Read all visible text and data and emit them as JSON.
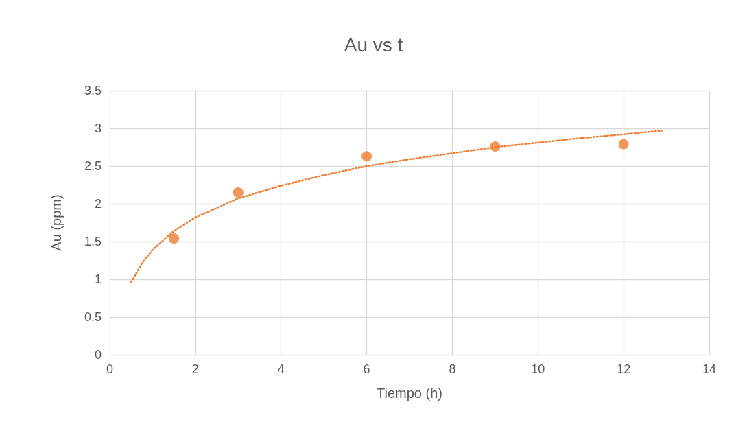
{
  "chart_data": {
    "type": "scatter",
    "title": "Au vs t",
    "xlabel": "Tiempo (h)",
    "ylabel": "Au (ppm)",
    "x": [
      1.5,
      3,
      6,
      9,
      12
    ],
    "series": [
      {
        "color": "#ed7d31",
        "values": [
          1.54,
          2.15,
          2.63,
          2.76,
          2.79
        ],
        "marker": "circle"
      },
      {
        "type": "line",
        "color": "#ed7d31",
        "line_style": "dotted",
        "marker": "none",
        "x": [
          0.5,
          0.75,
          1,
          1.5,
          2,
          3,
          4,
          5,
          6,
          7,
          8,
          9,
          10,
          11,
          12,
          12.9
        ],
        "values": [
          0.96,
          1.21,
          1.39,
          1.64,
          1.82,
          2.07,
          2.24,
          2.38,
          2.5,
          2.59,
          2.67,
          2.75,
          2.81,
          2.87,
          2.92,
          2.97
        ]
      }
    ],
    "xlim": [
      0,
      14
    ],
    "xticks": [
      0,
      2,
      4,
      6,
      8,
      10,
      12,
      14
    ],
    "ylim": [
      0,
      3.5
    ],
    "yticks": [
      0,
      0.5,
      1,
      1.5,
      2,
      2.5,
      3,
      3.5
    ],
    "grid": true
  }
}
